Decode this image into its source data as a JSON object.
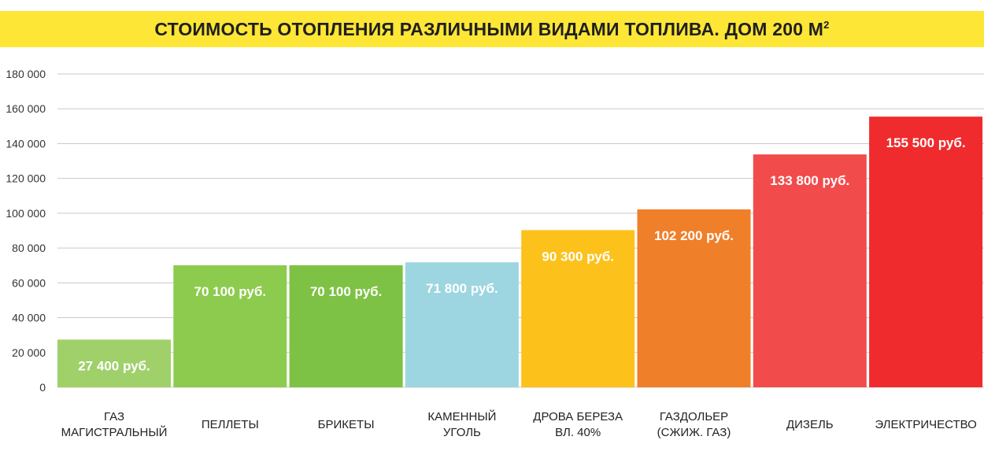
{
  "chart_data": {
    "type": "bar",
    "title": "СТОИМОСТЬ ОТОПЛЕНИЯ РАЗЛИЧНЫМИ ВИДАМИ ТОПЛИВА. ДОМ 200 М",
    "title_superscript": "2",
    "xlabel": "",
    "ylabel": "",
    "ylim": [
      0,
      180000
    ],
    "yticks": [
      0,
      20000,
      40000,
      60000,
      80000,
      100000,
      120000,
      140000,
      160000,
      180000
    ],
    "ytick_labels": [
      "0",
      "20 000",
      "40 000",
      "60 000",
      "80 000",
      "100 000",
      "120 000",
      "140 000",
      "160 000",
      "180 000"
    ],
    "grid": true,
    "legend": "none",
    "categories": [
      [
        "ГАЗ",
        "МАГИСТРАЛЬНЫЙ"
      ],
      [
        "ПЕЛЛЕТЫ"
      ],
      [
        "БРИКЕТЫ"
      ],
      [
        "КАМЕННЫЙ",
        "УГОЛЬ"
      ],
      [
        "ДРОВА БЕРЕЗА",
        "ВЛ. 40%"
      ],
      [
        "ГАЗДОЛЬЕР",
        "(СЖИЖ. ГАЗ)"
      ],
      [
        "ДИЗЕЛЬ"
      ],
      [
        "ЭЛЕКТРИЧЕСТВО"
      ]
    ],
    "values": [
      27400,
      70100,
      70100,
      71800,
      90300,
      102200,
      133800,
      155500
    ],
    "data_labels": [
      "27 400 руб.",
      "70 100 руб.",
      "70 100 руб.",
      "71 800 руб.",
      "90 300 руб.",
      "102 200 руб.",
      "133 800 руб.",
      "155 500 руб."
    ],
    "colors": [
      "#9fd06a",
      "#8ccb4e",
      "#7dc244",
      "#9dd6e0",
      "#fcc21b",
      "#f07f2a",
      "#f24b4b",
      "#ef2b2d"
    ],
    "title_band_color": "#fde635"
  }
}
